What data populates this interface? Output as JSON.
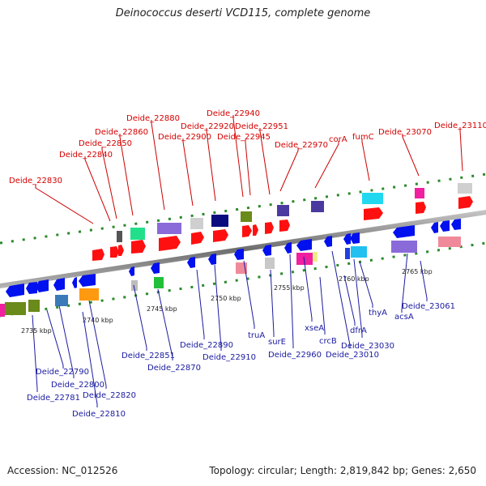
{
  "title": "Deinococcus deserti VCD115, complete genome",
  "footer": {
    "accession_label": "Accession:",
    "accession": "NC_012526",
    "topology_label": "Topology:",
    "topology": "circular",
    "length_label": "Length:",
    "length": "2,819,842 bp",
    "genes_label": "Genes:",
    "genes": "2,650"
  },
  "scale_ticks": [
    "2735 kbp",
    "2740 kbp",
    "2745 kbp",
    "2750 kbp",
    "2755 kbp",
    "2760 kbp",
    "2765 kbp"
  ],
  "top_labels": [
    "Deide_22830",
    "Deide_22840",
    "Deide_22850",
    "Deide_22860",
    "Deide_22880",
    "Deide_22900",
    "Deide_22920",
    "Deide_22940",
    "Deide_22945",
    "Deide_22951",
    "Deide_22970",
    "corA",
    "fumC",
    "Deide_23070",
    "Deide_23110"
  ],
  "bottom_labels": [
    "Deide_22781",
    "Deide_22790",
    "Deide_22800",
    "Deide_22810",
    "Deide_22820",
    "Deide_22851",
    "Deide_22870",
    "Deide_22890",
    "Deide_22910",
    "truA",
    "surE",
    "Deide_22960",
    "xseA",
    "crcB",
    "dfrA",
    "Deide_23010",
    "Deide_23030",
    "thyA",
    "acsA",
    "Deide_23061"
  ],
  "colors": {
    "top_label": "#d40000",
    "bottom_label": "#1a1aa0",
    "forward_gene": "#ff0000",
    "reverse_gene": "#0000ee",
    "axis": "#808080",
    "dots": "#2a8a2a"
  }
}
